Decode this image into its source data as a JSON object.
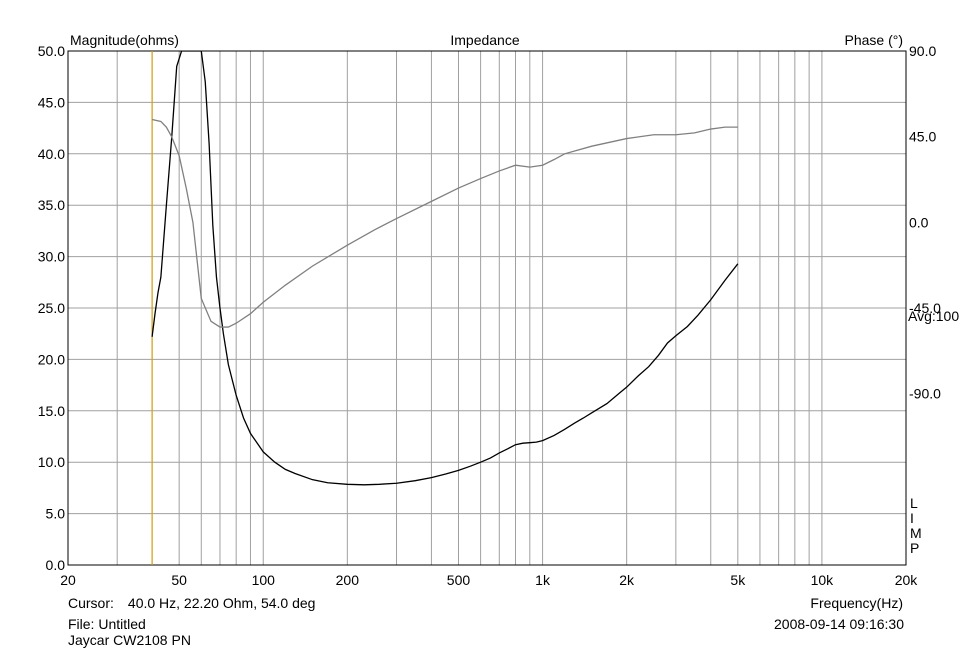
{
  "chart_data": {
    "type": "line",
    "title": "Impedance",
    "left_axis_title": "Magnitude(ohms)",
    "right_axis_title": "Phase (°)",
    "xlabel": "Frequency(Hz)",
    "x_scale": "log",
    "xlim": [
      20,
      20000
    ],
    "ylim": [
      0,
      50
    ],
    "phase_lim": [
      -180,
      90
    ],
    "grid": true,
    "x_ticks": [
      {
        "value": 20,
        "label": "20"
      },
      {
        "value": 50,
        "label": "50"
      },
      {
        "value": 100,
        "label": "100"
      },
      {
        "value": 200,
        "label": "200"
      },
      {
        "value": 500,
        "label": "500"
      },
      {
        "value": 1000,
        "label": "1k"
      },
      {
        "value": 2000,
        "label": "2k"
      },
      {
        "value": 5000,
        "label": "5k"
      },
      {
        "value": 10000,
        "label": "10k"
      },
      {
        "value": 20000,
        "label": "20k"
      }
    ],
    "y_ticks": [
      {
        "value": 0,
        "label": "0.0"
      },
      {
        "value": 5,
        "label": "5.0"
      },
      {
        "value": 10,
        "label": "10.0"
      },
      {
        "value": 15,
        "label": "15.0"
      },
      {
        "value": 20,
        "label": "20.0"
      },
      {
        "value": 25,
        "label": "25.0"
      },
      {
        "value": 30,
        "label": "30.0"
      },
      {
        "value": 35,
        "label": "35.0"
      },
      {
        "value": 40,
        "label": "40.0"
      },
      {
        "value": 45,
        "label": "45.0"
      },
      {
        "value": 50,
        "label": "50.0"
      }
    ],
    "phase_ticks": [
      {
        "value": 90,
        "label": "90.0"
      },
      {
        "value": 45,
        "label": "45.0"
      },
      {
        "value": 0,
        "label": "0.0"
      },
      {
        "value": -45,
        "label": "-45.0"
      },
      {
        "value": -90,
        "label": "-90.0"
      }
    ],
    "right_note": "Avg:100",
    "side_letters": [
      "L",
      "I",
      "M",
      "P"
    ],
    "cursor_frequency": 40,
    "series": [
      {
        "axis": "magnitude",
        "color": "#000000",
        "x": [
          40,
          41,
          42,
          43,
          45,
          47,
          49,
          51,
          52,
          53,
          60,
          62,
          64,
          66,
          68,
          70,
          72,
          75,
          80,
          85,
          90,
          100,
          110,
          120,
          130,
          150,
          170,
          200,
          230,
          260,
          300,
          350,
          400,
          450,
          500,
          550,
          600,
          650,
          700,
          750,
          800,
          850,
          900,
          950,
          1000,
          1100,
          1200,
          1300,
          1400,
          1500,
          1700,
          1900,
          2000,
          2200,
          2400,
          2600,
          2800,
          3000,
          3300,
          3600,
          4000,
          4500,
          5000
        ],
        "y": [
          22.2,
          24.5,
          26.5,
          28.0,
          35.0,
          41.5,
          48.5,
          50.0,
          50.0,
          50.0,
          50.0,
          47.0,
          41.0,
          33.0,
          28.0,
          25.0,
          22.5,
          19.5,
          16.5,
          14.3,
          12.8,
          11.0,
          10.0,
          9.3,
          8.9,
          8.3,
          8.0,
          7.85,
          7.8,
          7.85,
          7.95,
          8.2,
          8.5,
          8.85,
          9.2,
          9.6,
          10.0,
          10.4,
          10.9,
          11.3,
          11.7,
          11.85,
          11.9,
          11.95,
          12.1,
          12.6,
          13.2,
          13.8,
          14.3,
          14.8,
          15.7,
          16.8,
          17.3,
          18.4,
          19.3,
          20.4,
          21.6,
          22.3,
          23.2,
          24.3,
          25.8,
          27.7,
          29.3
        ]
      },
      {
        "axis": "phase",
        "color": "#808080",
        "x": [
          40,
          43,
          45,
          47,
          50,
          53,
          56,
          60,
          65,
          70,
          75,
          80,
          90,
          100,
          120,
          150,
          200,
          250,
          300,
          400,
          500,
          600,
          700,
          800,
          900,
          1000,
          1100,
          1200,
          1500,
          2000,
          2500,
          3000,
          3500,
          4000,
          4500,
          5000
        ],
        "y": [
          54,
          53,
          50,
          45,
          35,
          18,
          0,
          -40,
          -52,
          -55,
          -55,
          -53,
          -48,
          -42,
          -33,
          -23,
          -12,
          -4,
          2,
          11,
          18,
          23,
          27,
          30,
          29,
          30,
          33,
          36,
          40,
          44,
          46,
          46,
          47,
          49,
          50,
          50
        ]
      }
    ]
  },
  "footer": {
    "cursor_label": "Cursor:",
    "cursor_value": "40.0 Hz, 22.20 Ohm, 54.0 deg",
    "file_line": "File: Untitled",
    "device_line": "Jaycar CW2108 PN",
    "timestamp": "2008-09-14 09:16:30"
  }
}
